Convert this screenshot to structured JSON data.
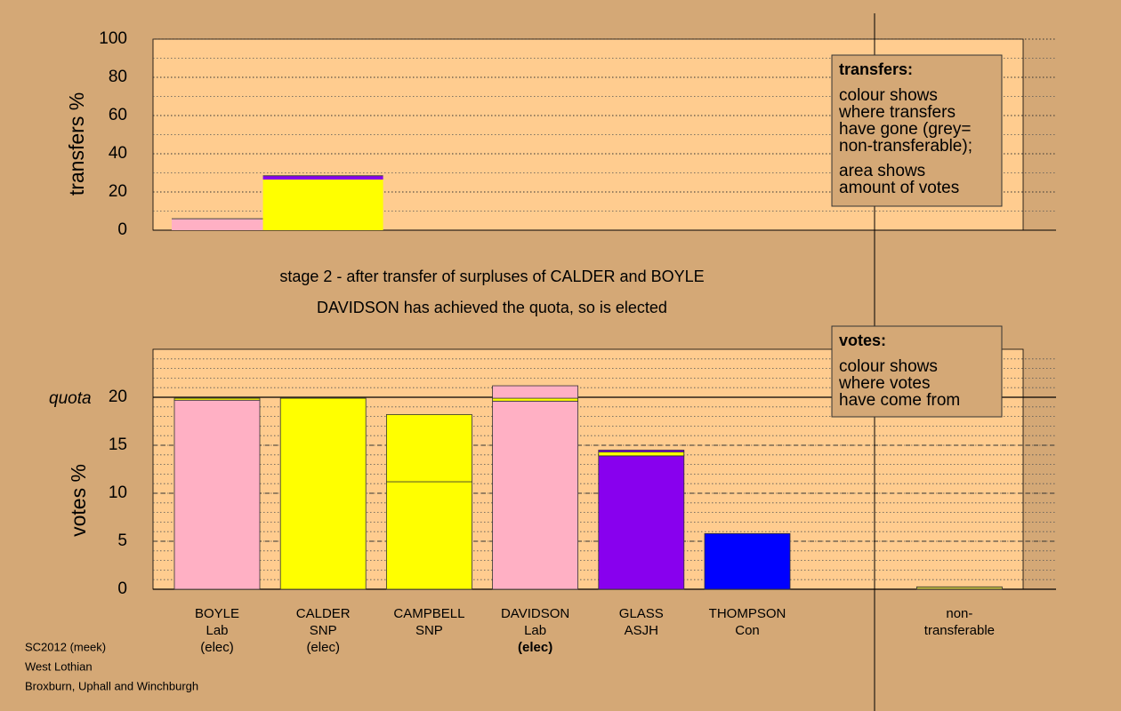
{
  "stage_text": "stage 2 - after transfer of surpluses of CALDER and BOYLE",
  "elected_text": "DAVIDSON has achieved the quota, so is elected",
  "footer": [
    "SC2012 (meek)",
    "West Lothian",
    "Broxburn, Uphall and Winchburgh"
  ],
  "legends": [
    {
      "title": "transfers:",
      "paragraphs": [
        [
          "colour shows",
          "where transfers",
          "have gone (grey=",
          "non-transferable);"
        ],
        [
          "area shows",
          "amount of votes"
        ]
      ]
    },
    {
      "title": "votes:",
      "paragraphs": [
        [
          "colour shows",
          "where votes",
          "have come from"
        ]
      ]
    }
  ],
  "chart_data": [
    {
      "type": "block",
      "ylabel": "transfers %",
      "ylim": [
        0,
        100
      ],
      "yticks": [
        0,
        20,
        40,
        60,
        80,
        100
      ],
      "minor_step": 10,
      "blocks": [
        {
          "amount": 0.76,
          "segments": [
            {
              "color": "#ffb0c4",
              "value": 6
            }
          ]
        },
        {
          "amount": 1,
          "segments": [
            {
              "color": "#ffff00",
              "value": 26.5
            },
            {
              "color": "#8800ee",
              "value": 2
            }
          ]
        }
      ]
    },
    {
      "type": "stacked_bar",
      "ylabel": "votes %",
      "ylim": [
        0,
        25
      ],
      "yticks": [
        0,
        5,
        10,
        15,
        20
      ],
      "minor_step": 1,
      "quota": {
        "label": "quota",
        "value": 20
      },
      "categories": [
        [
          "BOYLE",
          "Lab",
          "(elec)"
        ],
        [
          "CALDER",
          "SNP",
          "(elec)"
        ],
        [
          "CAMPBELL",
          "SNP"
        ],
        [
          "DAVIDSON",
          "Lab",
          "(elec)"
        ],
        [
          "GLASS",
          "ASJH"
        ],
        [
          "THOMPSON",
          "Con"
        ],
        null,
        [
          "non-",
          "transferable"
        ]
      ],
      "bold_lines": [
        {
          "category": 3,
          "line": 2
        }
      ],
      "stacks": [
        [
          {
            "color": "#ffb0c4",
            "value": 19.7
          },
          {
            "color": "#ffff00",
            "value": 0.2
          }
        ],
        [
          {
            "color": "#ffff00",
            "value": 19.9
          }
        ],
        [
          {
            "color": "#ffff00",
            "value": 11.2
          },
          {
            "color": "#ffff00",
            "value": 7.0
          }
        ],
        [
          {
            "color": "#ffb0c4",
            "value": 19.6
          },
          {
            "color": "#ffff00",
            "value": 0.3
          },
          {
            "color": "#ffb0c4",
            "value": 1.3
          }
        ],
        [
          {
            "color": "#8800ee",
            "value": 13.9
          },
          {
            "color": "#ffff00",
            "value": 0.4
          },
          {
            "color": "#8800ee",
            "value": 0.2
          }
        ],
        [
          {
            "color": "#0000ff",
            "value": 5.8
          }
        ],
        [],
        [
          {
            "color": "#c8c040",
            "value": 0.25
          }
        ]
      ]
    }
  ]
}
